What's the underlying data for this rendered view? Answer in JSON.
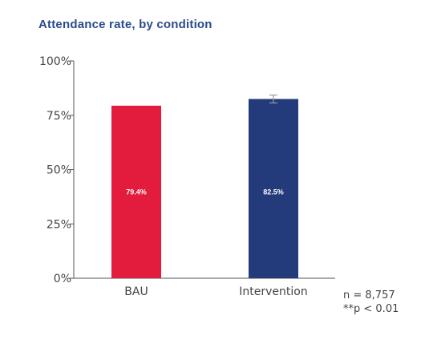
{
  "chart_data": {
    "type": "bar",
    "title": "Attendance rate, by condition",
    "categories": [
      "BAU",
      "Intervention"
    ],
    "values": [
      79.4,
      82.5
    ],
    "value_labels": [
      "79.4%",
      "82.5%"
    ],
    "colors": [
      "#e31c3d",
      "#233a7b"
    ],
    "error_bars": [
      null,
      {
        "low": 80.7,
        "high": 84.3
      }
    ],
    "error_bar_color": "#9a9a9a",
    "ylim": [
      0,
      100
    ],
    "yticks": [
      0,
      25,
      50,
      75,
      100
    ],
    "ytick_labels": [
      "0%",
      "25%",
      "50%",
      "75%",
      "100%"
    ],
    "xlabel": "",
    "ylabel": "",
    "grid": false,
    "notes": [
      "n = 8,757",
      "**p < 0.01"
    ]
  }
}
